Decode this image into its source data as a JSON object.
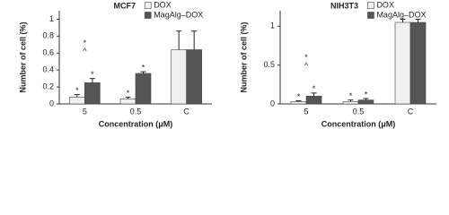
{
  "chart_data": [
    {
      "type": "bar",
      "title": "MCF7",
      "y_label": "Number of cell (%)",
      "x_label": "Concentration (μM)",
      "categories": [
        "5",
        "0.5",
        "C"
      ],
      "series": [
        {
          "name": "DOX",
          "color": "#f0f0f0",
          "values": [
            0.08,
            0.06,
            0.64
          ],
          "errors": [
            0.03,
            0.02,
            0.22
          ]
        },
        {
          "name": "MagAlg–DOX",
          "color": "#555555",
          "values": [
            0.25,
            0.36,
            0.64
          ],
          "errors": [
            0.05,
            0.02,
            0.22
          ]
        }
      ],
      "annotations": [
        {
          "text": "*",
          "category": "5",
          "series": "DOX"
        },
        {
          "text": "*",
          "category": "5",
          "series": "MagAlg–DOX"
        },
        {
          "text": "*",
          "category": "0.5",
          "series": "DOX"
        },
        {
          "text": "*",
          "category": "0.5",
          "series": "MagAlg–DOX"
        },
        {
          "text": "^",
          "category": "5"
        },
        {
          "text": "*",
          "category": "5"
        }
      ],
      "ylim": [
        0,
        1.1
      ],
      "yticks": [
        0,
        0.2,
        0.4,
        0.6,
        0.8,
        1
      ],
      "legend": "top-right"
    },
    {
      "type": "bar",
      "title": "NIH3T3",
      "y_label": "Number of cell (%)",
      "x_label": "Concentration (μM)",
      "categories": [
        "5",
        "0.5",
        "C"
      ],
      "series": [
        {
          "name": "DOX",
          "color": "#f0f0f0",
          "values": [
            0.03,
            0.03,
            1.05
          ],
          "errors": [
            0.01,
            0.02,
            0.04
          ]
        },
        {
          "name": "MagAlg–DOX",
          "color": "#555555",
          "values": [
            0.1,
            0.05,
            1.05
          ],
          "errors": [
            0.04,
            0.02,
            0.04
          ]
        }
      ],
      "annotations": [
        {
          "text": "*",
          "category": "5",
          "series": "DOX"
        },
        {
          "text": "*",
          "category": "5",
          "series": "MagAlg–DOX"
        },
        {
          "text": "*",
          "category": "0.5",
          "series": "DOX"
        },
        {
          "text": "*",
          "category": "0.5",
          "series": "MagAlg–DOX"
        },
        {
          "text": "^",
          "category": "5"
        },
        {
          "text": "*",
          "category": "5"
        }
      ],
      "ylim": [
        0,
        1.2
      ],
      "yticks": [
        0,
        0.5,
        1
      ],
      "legend": "top-right"
    }
  ]
}
